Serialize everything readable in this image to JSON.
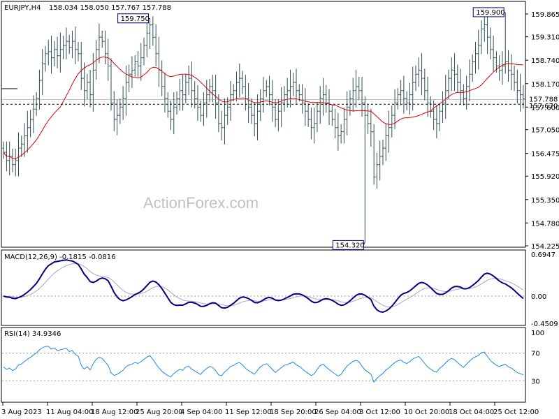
{
  "chart_data": [
    {
      "type": "ohlc",
      "header": {
        "symbol": "EURJPY,H4",
        "ohlc": "158.034 158.050 157.767 157.788"
      },
      "watermark": "ActionForex.com",
      "y_ticks": [
        "159.865",
        "159.310",
        "158.740",
        "158.170",
        "157.600",
        "157.050",
        "156.475",
        "155.920",
        "155.350",
        "154.780",
        "154.225"
      ],
      "ylim": [
        154.225,
        159.865
      ],
      "x_ticks": [
        "3 Aug 2023",
        "11 Aug 04:00",
        "18 Aug 12:00",
        "25 Aug 20:00",
        "4 Sep 04:00",
        "11 Sep 12:00",
        "18 Sep 20:00",
        "26 Sep 04:00",
        "3 Oct 12:00",
        "10 Oct 20:00",
        "18 Oct 04:00",
        "25 Oct 12:00"
      ],
      "annotations": [
        {
          "text": "159.750",
          "value": 159.75
        },
        {
          "text": "159.900",
          "value": 159.9
        },
        {
          "text": "154.320",
          "value": 154.32
        }
      ],
      "current_price": {
        "text": "157.788",
        "value": 157.788
      },
      "reference_line": {
        "text": "157.670",
        "value": 157.67
      },
      "moving_average_color": "#dd0000",
      "bar_color": "#2f4f4f",
      "close_series": [
        156.5,
        156.3,
        156.4,
        156.2,
        156.3,
        156.6,
        156.7,
        156.9,
        157.1,
        157.3,
        157.55,
        157.8,
        158.25,
        158.65,
        158.9,
        158.95,
        158.8,
        159.0,
        158.85,
        159.0,
        159.1,
        159.2,
        159.05,
        159.2,
        159.0,
        158.9,
        158.3,
        158.0,
        158.2,
        157.9,
        158.5,
        159.0,
        159.3,
        159.2,
        158.9,
        158.6,
        157.7,
        157.3,
        157.4,
        157.6,
        157.8,
        158.2,
        158.4,
        158.5,
        158.7,
        158.6,
        158.8,
        159.1,
        159.4,
        159.6,
        159.3,
        158.9,
        158.5,
        158.1,
        157.8,
        157.5,
        157.3,
        157.6,
        157.8,
        158.0,
        157.9,
        158.2,
        158.3,
        158.0,
        157.8,
        157.6,
        157.4,
        157.7,
        157.9,
        158.1,
        158.0,
        157.7,
        157.2,
        157.1,
        157.4,
        157.6,
        157.9,
        158.0,
        158.2,
        158.3,
        158.1,
        157.8,
        157.6,
        157.4,
        157.2,
        157.5,
        157.8,
        158.0,
        158.1,
        157.9,
        157.6,
        157.3,
        157.5,
        157.7,
        157.9,
        158.0,
        158.1,
        158.2,
        158.0,
        157.9,
        157.7,
        157.5,
        157.3,
        157.1,
        157.2,
        157.5,
        157.8,
        157.9,
        157.7,
        157.5,
        157.3,
        157.1,
        156.9,
        157.0,
        157.3,
        157.6,
        157.8,
        158.0,
        158.1,
        158.0,
        157.7,
        157.4,
        157.2,
        157.0,
        155.9,
        156.2,
        156.4,
        156.6,
        156.9,
        157.1,
        157.4,
        157.7,
        157.9,
        158.0,
        157.8,
        157.7,
        157.9,
        158.2,
        158.4,
        158.5,
        158.3,
        158.0,
        157.7,
        157.5,
        157.3,
        157.2,
        157.5,
        157.7,
        158.0,
        158.3,
        158.5,
        158.4,
        158.2,
        158.0,
        157.8,
        158.1,
        158.4,
        158.7,
        158.9,
        159.1,
        159.5,
        159.6,
        159.3,
        159.0,
        158.8,
        158.6,
        158.5,
        158.6,
        158.7,
        158.5,
        158.4,
        158.2,
        158.0,
        157.9,
        157.8
      ]
    },
    {
      "type": "line",
      "header": "MACD(12,26,9) -0.1815 -0.0816",
      "y_ticks": [
        "0.6947",
        "0.00",
        "-0.4509"
      ],
      "ylim": [
        -0.4509,
        0.6947
      ],
      "macd_color": "#000080",
      "signal_color": "#b0a0c8",
      "zero_line": 0
    },
    {
      "type": "line",
      "header": "RSI(14) 34.9346",
      "y_ticks": [
        "100",
        "70",
        "30"
      ],
      "ylim": [
        0,
        100
      ],
      "levels": [
        70,
        30
      ],
      "line_color": "#1e88e5"
    }
  ]
}
